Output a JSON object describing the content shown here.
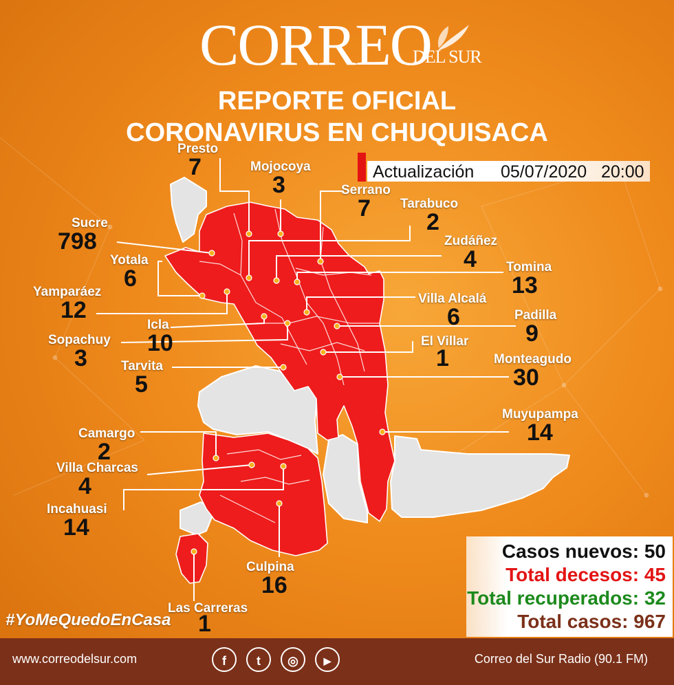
{
  "logo": {
    "main": "CORREO",
    "sub": "DEL SUR"
  },
  "title": {
    "line1": "REPORTE OFICIAL",
    "line2": "CORONAVIRUS EN CHUQUISACA"
  },
  "update": {
    "label": "Actualización",
    "date": "05/07/2020",
    "time": "20:00"
  },
  "municipalities": [
    {
      "name": "Presto",
      "cases": "7"
    },
    {
      "name": "Mojocoya",
      "cases": "3"
    },
    {
      "name": "Serrano",
      "cases": "7"
    },
    {
      "name": "Tarabuco",
      "cases": "2"
    },
    {
      "name": "Sucre",
      "cases": "798"
    },
    {
      "name": "Zudáñez",
      "cases": "4"
    },
    {
      "name": "Yotala",
      "cases": "6"
    },
    {
      "name": "Tomina",
      "cases": "13"
    },
    {
      "name": "Yamparáez",
      "cases": "12"
    },
    {
      "name": "Villa Alcalá",
      "cases": "6"
    },
    {
      "name": "Padilla",
      "cases": "9"
    },
    {
      "name": "Icla",
      "cases": "10"
    },
    {
      "name": "Sopachuy",
      "cases": "3"
    },
    {
      "name": "El Villar",
      "cases": "1"
    },
    {
      "name": "Tarvita",
      "cases": "5"
    },
    {
      "name": "Monteagudo",
      "cases": "30"
    },
    {
      "name": "Muyupampa",
      "cases": "14"
    },
    {
      "name": "Camargo",
      "cases": "2"
    },
    {
      "name": "Villa Charcas",
      "cases": "4"
    },
    {
      "name": "Incahuasi",
      "cases": "14"
    },
    {
      "name": "Culpina",
      "cases": "16"
    },
    {
      "name": "Las Carreras",
      "cases": "1"
    }
  ],
  "stats": {
    "new_cases": "Casos nuevos: 50",
    "deaths": "Total decesos: 45",
    "recovered": "Total recuperados: 32",
    "total": "Total casos: 967"
  },
  "colors": {
    "new_cases": "#111111",
    "deaths": "#e31414",
    "recovered": "#1c8a1c",
    "total": "#7b3019",
    "affected": "#ee1c1c",
    "unaffected": "#e4e4e4"
  },
  "hashtag": "#YoMeQuedoEnCasa",
  "footer": {
    "website": "www.correodelsur.com",
    "radio": "Correo del Sur Radio (90.1 FM)",
    "social": [
      {
        "icon": "facebook-icon",
        "glyph": "f"
      },
      {
        "icon": "twitter-icon",
        "glyph": "t"
      },
      {
        "icon": "instagram-icon",
        "glyph": "◎"
      },
      {
        "icon": "youtube-icon",
        "glyph": "▶"
      }
    ]
  }
}
